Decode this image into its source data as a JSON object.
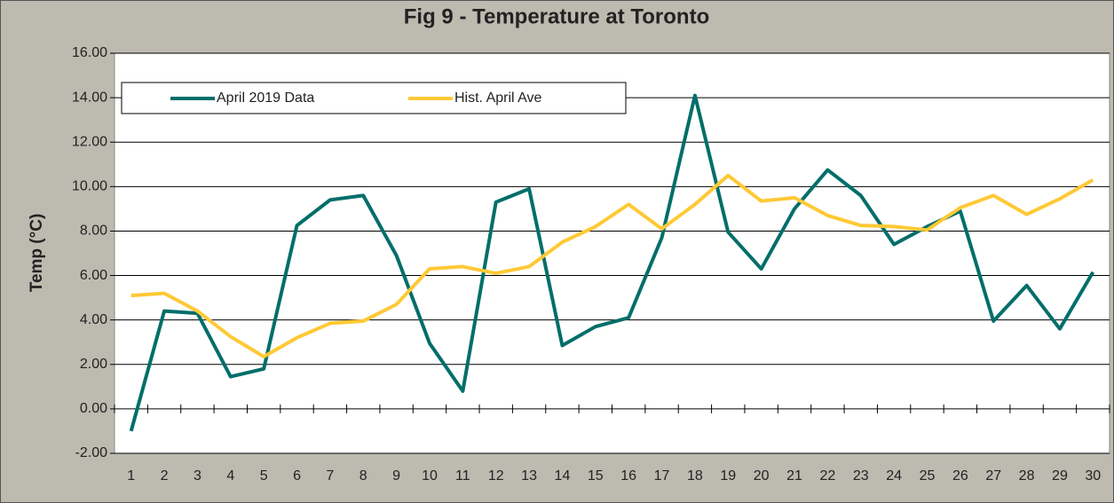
{
  "chart_data": {
    "type": "line",
    "title": "Fig 9 - Temperature at Toronto",
    "y_label": "Temp (°C)",
    "categories": [
      "1",
      "2",
      "3",
      "4",
      "5",
      "6",
      "7",
      "8",
      "9",
      "10",
      "11",
      "12",
      "13",
      "14",
      "15",
      "16",
      "17",
      "18",
      "19",
      "20",
      "21",
      "22",
      "23",
      "24",
      "25",
      "26",
      "27",
      "28",
      "29",
      "30"
    ],
    "series": [
      {
        "name": "April 2019 Data",
        "color": "#006e6a",
        "values": [
          -1.0,
          4.4,
          4.3,
          1.45,
          1.8,
          8.25,
          9.4,
          9.6,
          6.9,
          2.95,
          0.8,
          9.3,
          9.9,
          2.85,
          3.7,
          4.1,
          7.7,
          14.1,
          7.95,
          6.3,
          9.0,
          10.75,
          9.6,
          7.4,
          8.2,
          8.9,
          3.95,
          5.55,
          3.6,
          6.15
        ]
      },
      {
        "name": "Hist. April Ave",
        "color": "#ffc935",
        "values": [
          5.1,
          5.2,
          4.4,
          3.25,
          2.35,
          3.2,
          3.85,
          3.95,
          4.7,
          6.3,
          6.4,
          6.1,
          6.4,
          7.5,
          8.2,
          9.2,
          8.1,
          9.2,
          10.5,
          9.35,
          9.5,
          8.7,
          8.25,
          8.2,
          8.05,
          9.05,
          9.6,
          8.75,
          9.45,
          10.3
        ]
      }
    ],
    "ylim": [
      -2,
      16
    ],
    "yticks": [
      {
        "value": -2,
        "label": "-2.00"
      },
      {
        "value": 0,
        "label": "0.00"
      },
      {
        "value": 2,
        "label": "2.00"
      },
      {
        "value": 4,
        "label": "4.00"
      },
      {
        "value": 6,
        "label": "6.00"
      },
      {
        "value": 8,
        "label": "8.00"
      },
      {
        "value": 10,
        "label": "10.00"
      },
      {
        "value": 12,
        "label": "12.00"
      },
      {
        "value": 14,
        "label": "14.00"
      },
      {
        "value": 16,
        "label": "16.00"
      }
    ],
    "grid": true,
    "legend": "top-left"
  }
}
